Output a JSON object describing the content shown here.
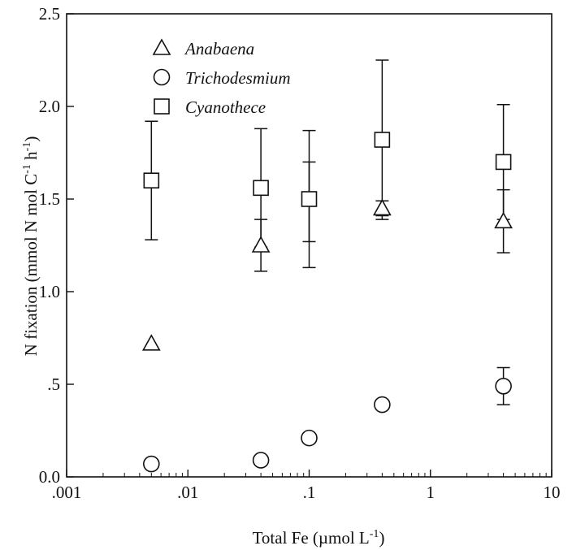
{
  "chart_data": {
    "type": "scatter",
    "xscale": "log",
    "xlim": [
      0.001,
      10
    ],
    "ylim": [
      0,
      2.5
    ],
    "xlabel": {
      "main": "Total Fe (µmol L",
      "sup": "-1",
      "end": ")"
    },
    "ylabel": {
      "p1": "N fixation (mmol N mol C",
      "s1": "-1",
      "p2": " h",
      "s2": "-1",
      "p3": ")"
    },
    "x_ticks": [
      {
        "value": 0.001,
        "label": ".001"
      },
      {
        "value": 0.01,
        "label": ".01"
      },
      {
        "value": 0.1,
        "label": ".1"
      },
      {
        "value": 1,
        "label": "1"
      },
      {
        "value": 10,
        "label": "10"
      }
    ],
    "y_ticks": [
      {
        "value": 0,
        "label": "0.0"
      },
      {
        "value": 0.5,
        "label": ".5"
      },
      {
        "value": 1.0,
        "label": "1.0"
      },
      {
        "value": 1.5,
        "label": "1.5"
      },
      {
        "value": 2.0,
        "label": "2.0"
      },
      {
        "value": 2.5,
        "label": "2.5"
      }
    ],
    "grid": false,
    "legend_position": "top-left",
    "series": [
      {
        "name": "Anabaena",
        "marker": "triangle",
        "points": [
          {
            "x": 0.005,
            "y": 0.72,
            "err": null
          },
          {
            "x": 0.04,
            "y": 1.25,
            "err": 0.14
          },
          {
            "x": 0.4,
            "y": 1.45,
            "err": 0.04
          },
          {
            "x": 4,
            "y": 1.38,
            "err": 0.17
          }
        ]
      },
      {
        "name": "Trichodesmium",
        "marker": "circle",
        "points": [
          {
            "x": 0.005,
            "y": 0.07,
            "err": null
          },
          {
            "x": 0.04,
            "y": 0.09,
            "err": null
          },
          {
            "x": 0.1,
            "y": 0.21,
            "err": null
          },
          {
            "x": 0.4,
            "y": 0.39,
            "err": null
          },
          {
            "x": 4,
            "y": 0.49,
            "err": 0.1
          }
        ]
      },
      {
        "name": "Cyanothece",
        "marker": "square",
        "points": [
          {
            "x": 0.005,
            "y": 1.6,
            "err": 0.32
          },
          {
            "x": 0.04,
            "y": 1.56,
            "err": 0.32
          },
          {
            "x": 0.1,
            "y": 1.5,
            "err": 0.37
          },
          {
            "x": 0.4,
            "y": 1.82,
            "err": 0.43
          },
          {
            "x": 4,
            "y": 1.7,
            "err": 0.31
          }
        ]
      }
    ],
    "extra_error_bars": [
      {
        "x": 0.1,
        "low": 1.27,
        "high": 1.7
      }
    ]
  }
}
